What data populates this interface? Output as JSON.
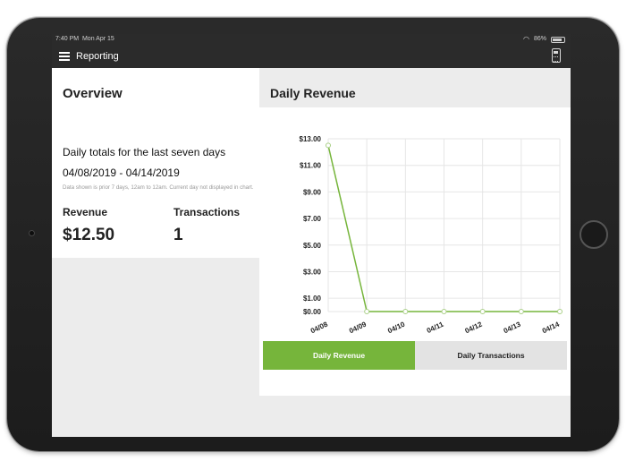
{
  "status_bar": {
    "time": "7:40 PM",
    "date": "Mon Apr 15",
    "battery": "86%"
  },
  "nav": {
    "title": "Reporting"
  },
  "overview": {
    "title": "Overview",
    "subtitle": "Daily totals for the last seven days",
    "date_range": "04/08/2019 - 04/14/2019",
    "note": "Data shown is prior 7 days, 12am to 12am. Current day not displayed in chart.",
    "revenue_label": "Revenue",
    "revenue_value": "$12.50",
    "transactions_label": "Transactions",
    "transactions_value": "1"
  },
  "chart_header": {
    "title": "Daily Revenue"
  },
  "chart_data": {
    "type": "line",
    "x": [
      "04/08",
      "04/09",
      "04/10",
      "04/11",
      "04/12",
      "04/13",
      "04/14"
    ],
    "values": [
      12.5,
      0,
      0,
      0,
      0,
      0,
      0
    ],
    "y_ticks": [
      "$0.00",
      "$1.00",
      "$3.00",
      "$5.00",
      "$7.00",
      "$9.00",
      "$11.00",
      "$13.00"
    ],
    "y_tick_values": [
      0,
      1,
      3,
      5,
      7,
      9,
      11,
      13
    ],
    "ylim": [
      0,
      13
    ],
    "grid": true,
    "line_color": "#76b53b"
  },
  "tabs": [
    {
      "label": "Daily Revenue",
      "active": true
    },
    {
      "label": "Daily Transactions",
      "active": false
    }
  ],
  "colors": {
    "accent": "#76b53b",
    "nav_bg": "#2b2b2b"
  }
}
